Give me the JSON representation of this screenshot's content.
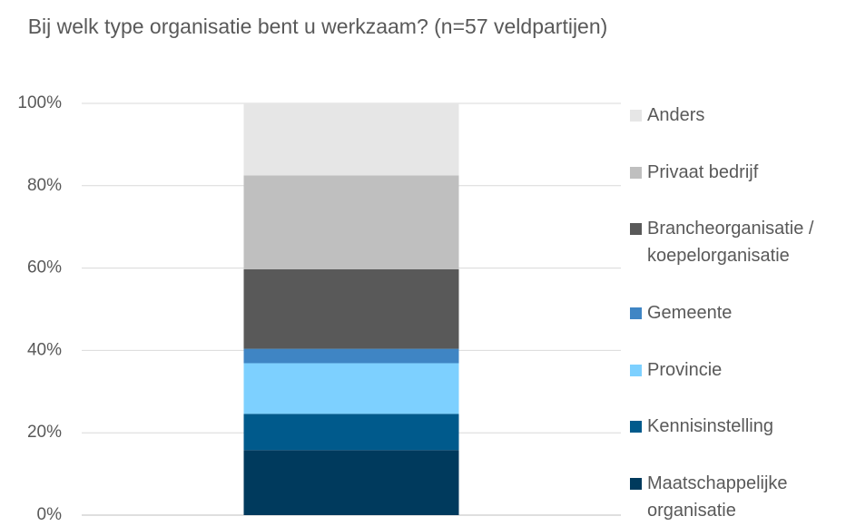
{
  "chart_data": {
    "type": "stacked_bar",
    "title": "Bij welk type organisatie bent u werkzaam? (n=57 veldpartijen)",
    "categories": [
      null
    ],
    "series": [
      {
        "name": "Maatschappelijke organisatie",
        "color": "#003a5d",
        "values": [
          15.8
        ]
      },
      {
        "name": "Kennisinstelling",
        "color": "#005a8c",
        "values": [
          8.8
        ]
      },
      {
        "name": "Provincie",
        "color": "#7dd0ff",
        "values": [
          12.3
        ]
      },
      {
        "name": "Gemeente",
        "color": "#3f85c4",
        "values": [
          3.5
        ]
      },
      {
        "name": "Brancheorganisatie / koepelorganisatie",
        "color": "#595959",
        "values": [
          19.3
        ]
      },
      {
        "name": "Privaat bedrijf",
        "color": "#bfbfbf",
        "values": [
          22.8
        ]
      },
      {
        "name": "Anders",
        "color": "#e6e6e6",
        "values": [
          17.5
        ]
      }
    ],
    "ylim": [
      0,
      100
    ],
    "yticks": [
      {
        "value": 0,
        "label": "0%"
      },
      {
        "value": 20,
        "label": "20%"
      },
      {
        "value": 40,
        "label": "40%"
      },
      {
        "value": 60,
        "label": "60%"
      },
      {
        "value": 80,
        "label": "80%"
      },
      {
        "value": 100,
        "label": "100%"
      }
    ],
    "grid": true,
    "legend": "right"
  }
}
